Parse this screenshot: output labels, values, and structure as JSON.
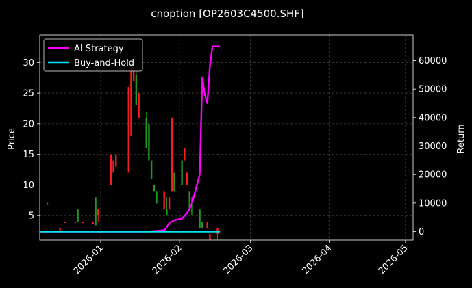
{
  "title": "cnoption [OP2603C4500.SHF]",
  "colors": {
    "background": "#000000",
    "axis": "#ffffff",
    "grid": "#555555",
    "up_candle": "#ff1a1a",
    "down_candle": "#1f9a1f",
    "ai_strategy": "#ff00ff",
    "buy_and_hold": "#00e5ee"
  },
  "chart_data": {
    "type": "line",
    "title": "cnoption [OP2603C4500.SHF]",
    "xlabel": "",
    "ylabel": "Price",
    "y2label": "Return",
    "grid": true,
    "legend_position": "top-left",
    "x_ticks": [
      "2026-01",
      "2026-02",
      "2026-03",
      "2026-04",
      "2026-05"
    ],
    "y_ticks": [
      "5",
      "10",
      "15",
      "20",
      "25",
      "30"
    ],
    "y2_ticks": [
      "0",
      "10000",
      "20000",
      "30000",
      "40000",
      "50000",
      "60000"
    ],
    "xlim": [
      "2025-12-08",
      "2026-05-04"
    ],
    "ylim": [
      1,
      34.5
    ],
    "y2lim": [
      -3000,
      69000
    ],
    "legend": [
      "AI Strategy",
      "Buy-and-Hold"
    ],
    "candles": [
      {
        "date": "2025-12-11",
        "open": 7,
        "high": 7.2,
        "low": 6.8,
        "close": 7,
        "dir": "up"
      },
      {
        "date": "2025-12-16",
        "open": 3,
        "high": 3,
        "low": 2.6,
        "close": 2.6,
        "dir": "up"
      },
      {
        "date": "2025-12-18",
        "open": 4,
        "high": 4,
        "low": 3.8,
        "close": 3.8,
        "dir": "up"
      },
      {
        "date": "2025-12-22",
        "open": 4,
        "high": 4,
        "low": 3.8,
        "close": 3.8,
        "dir": "up"
      },
      {
        "date": "2025-12-23",
        "open": 6,
        "high": 6,
        "low": 4,
        "close": 4,
        "dir": "down"
      },
      {
        "date": "2025-12-25",
        "open": 4,
        "high": 4,
        "low": 3.8,
        "close": 3.8,
        "dir": "up"
      },
      {
        "date": "2025-12-29",
        "open": 4,
        "high": 4,
        "low": 3.6,
        "close": 3.6,
        "dir": "up"
      },
      {
        "date": "2025-12-30",
        "open": 8,
        "high": 8,
        "low": 3.4,
        "close": 3.4,
        "dir": "down"
      },
      {
        "date": "2025-12-31",
        "open": 5,
        "high": 6,
        "low": 4,
        "close": 6,
        "dir": "up"
      },
      {
        "date": "2026-01-05",
        "open": 10,
        "high": 15,
        "low": 10,
        "close": 15,
        "dir": "up"
      },
      {
        "date": "2026-01-06",
        "open": 12,
        "high": 14,
        "low": 12,
        "close": 14,
        "dir": "up"
      },
      {
        "date": "2026-01-07",
        "open": 13,
        "high": 15,
        "low": 13,
        "close": 15,
        "dir": "up"
      },
      {
        "date": "2026-01-12",
        "open": 12,
        "high": 26,
        "low": 12,
        "close": 26,
        "dir": "up"
      },
      {
        "date": "2026-01-13",
        "open": 18,
        "high": 30,
        "low": 18,
        "close": 30,
        "dir": "up"
      },
      {
        "date": "2026-01-14",
        "open": 27,
        "high": 30,
        "low": 27,
        "close": 30,
        "dir": "up"
      },
      {
        "date": "2026-01-15",
        "open": 28,
        "high": 30,
        "low": 23,
        "close": 23,
        "dir": "down"
      },
      {
        "date": "2026-01-16",
        "open": 21,
        "high": 25,
        "low": 21,
        "close": 25,
        "dir": "up"
      },
      {
        "date": "2026-01-19",
        "open": 21,
        "high": 22,
        "low": 16,
        "close": 16,
        "dir": "down"
      },
      {
        "date": "2026-01-20",
        "open": 20,
        "high": 20,
        "low": 14,
        "close": 14,
        "dir": "down"
      },
      {
        "date": "2026-01-21",
        "open": 14,
        "high": 14,
        "low": 11,
        "close": 11,
        "dir": "down"
      },
      {
        "date": "2026-01-22",
        "open": 10,
        "high": 10,
        "low": 9,
        "close": 9,
        "dir": "down"
      },
      {
        "date": "2026-01-23",
        "open": 9,
        "high": 9,
        "low": 7,
        "close": 7,
        "dir": "down"
      },
      {
        "date": "2026-01-26",
        "open": 6,
        "high": 9,
        "low": 6,
        "close": 9,
        "dir": "up"
      },
      {
        "date": "2026-01-27",
        "open": 6,
        "high": 8,
        "low": 5,
        "close": 5,
        "dir": "down"
      },
      {
        "date": "2026-01-28",
        "open": 8,
        "high": 8,
        "low": 6,
        "close": 6,
        "dir": "up"
      },
      {
        "date": "2026-01-29",
        "open": 9,
        "high": 21,
        "low": 9,
        "close": 21,
        "dir": "up"
      },
      {
        "date": "2026-01-30",
        "open": 12,
        "high": 12,
        "low": 9,
        "close": 9,
        "dir": "down"
      },
      {
        "date": "2026-02-02",
        "open": 14,
        "high": 27,
        "low": 10,
        "close": 10,
        "dir": "down"
      },
      {
        "date": "2026-02-03",
        "open": 14,
        "high": 16,
        "low": 14,
        "close": 16,
        "dir": "up"
      },
      {
        "date": "2026-02-04",
        "open": 10,
        "high": 12,
        "low": 10,
        "close": 12,
        "dir": "up"
      },
      {
        "date": "2026-02-05",
        "open": 9,
        "high": 9,
        "low": 6,
        "close": 6,
        "dir": "down"
      },
      {
        "date": "2026-02-06",
        "open": 8,
        "high": 8,
        "low": 5,
        "close": 5,
        "dir": "down"
      },
      {
        "date": "2026-02-09",
        "open": 6,
        "high": 6,
        "low": 3,
        "close": 3,
        "dir": "down"
      },
      {
        "date": "2026-02-10",
        "open": 4,
        "high": 4,
        "low": 3,
        "close": 3,
        "dir": "down"
      },
      {
        "date": "2026-02-12",
        "open": 4,
        "high": 4,
        "low": 3,
        "close": 3,
        "dir": "up"
      },
      {
        "date": "2026-02-13",
        "open": 2,
        "high": 2,
        "low": 1,
        "close": 1,
        "dir": "up"
      },
      {
        "date": "2026-02-16",
        "open": 2,
        "high": 3,
        "low": 1,
        "close": 3,
        "dir": "up"
      }
    ],
    "series": [
      {
        "name": "AI Strategy",
        "axis": "right",
        "x": [
          "2025-12-08",
          "2026-01-01",
          "2026-01-20",
          "2026-01-26",
          "2026-01-27",
          "2026-01-28",
          "2026-01-29",
          "2026-01-30",
          "2026-02-02",
          "2026-02-03",
          "2026-02-04",
          "2026-02-05",
          "2026-02-06",
          "2026-02-09",
          "2026-02-10",
          "2026-02-11",
          "2026-02-12",
          "2026-02-13",
          "2026-02-14",
          "2026-02-17"
        ],
        "values": [
          0,
          0,
          0,
          500,
          1500,
          3000,
          3500,
          4000,
          4500,
          5500,
          6500,
          8000,
          10000,
          20000,
          54000,
          48000,
          45000,
          58000,
          65000,
          65000
        ]
      },
      {
        "name": "Buy-and-Hold",
        "axis": "right",
        "x": [
          "2025-12-08",
          "2026-02-17"
        ],
        "values": [
          0,
          0
        ]
      }
    ]
  }
}
